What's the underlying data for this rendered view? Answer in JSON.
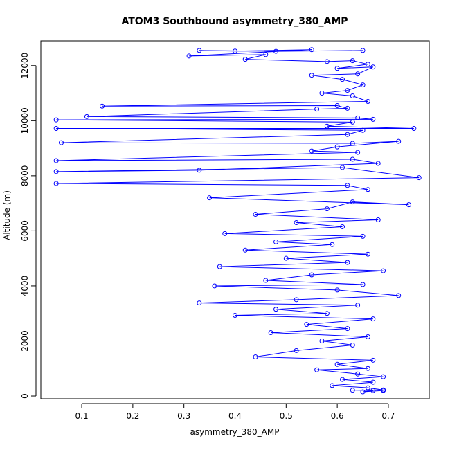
{
  "chart_data": {
    "type": "scatter",
    "title": "ATOM3 Southbound asymmetry_380_AMP",
    "xlabel": "asymmetry_380_AMP",
    "ylabel": "Altitude (m)",
    "xlim": [
      0.02,
      0.78
    ],
    "ylim": [
      -100,
      12900
    ],
    "xticks": [
      "0.1",
      "0.2",
      "0.3",
      "0.4",
      "0.5",
      "0.6",
      "0.7"
    ],
    "yticks": [
      "0",
      "2000",
      "4000",
      "6000",
      "8000",
      "10000",
      "12000"
    ],
    "series_color": "#0000ff",
    "grid": false,
    "legend": "none",
    "series": [
      {
        "points": [
          [
            0.65,
            12550
          ],
          [
            0.48,
            12520
          ],
          [
            0.33,
            12550
          ],
          [
            0.4,
            12530
          ],
          [
            0.55,
            12580
          ],
          [
            0.31,
            12350
          ],
          [
            0.46,
            12400
          ],
          [
            0.42,
            12230
          ],
          [
            0.58,
            12150
          ],
          [
            0.63,
            12180
          ],
          [
            0.66,
            12050
          ],
          [
            0.6,
            11900
          ],
          [
            0.67,
            11950
          ],
          [
            0.64,
            11700
          ],
          [
            0.55,
            11650
          ],
          [
            0.61,
            11500
          ],
          [
            0.65,
            11300
          ],
          [
            0.62,
            11100
          ],
          [
            0.57,
            11000
          ],
          [
            0.63,
            10900
          ],
          [
            0.66,
            10700
          ],
          [
            0.14,
            10530
          ],
          [
            0.6,
            10550
          ],
          [
            0.62,
            10450
          ],
          [
            0.56,
            10420
          ],
          [
            0.11,
            10150
          ],
          [
            0.64,
            10100
          ],
          [
            0.67,
            10050
          ],
          [
            0.05,
            10030
          ],
          [
            0.63,
            9950
          ],
          [
            0.58,
            9800
          ],
          [
            0.75,
            9720
          ],
          [
            0.05,
            9720
          ],
          [
            0.65,
            9650
          ],
          [
            0.62,
            9500
          ],
          [
            0.06,
            9200
          ],
          [
            0.63,
            9180
          ],
          [
            0.72,
            9250
          ],
          [
            0.6,
            9050
          ],
          [
            0.55,
            8900
          ],
          [
            0.64,
            8850
          ],
          [
            0.05,
            8550
          ],
          [
            0.63,
            8600
          ],
          [
            0.68,
            8450
          ],
          [
            0.33,
            8200
          ],
          [
            0.05,
            8150
          ],
          [
            0.61,
            8300
          ],
          [
            0.76,
            7930
          ],
          [
            0.05,
            7720
          ],
          [
            0.62,
            7650
          ],
          [
            0.66,
            7500
          ],
          [
            0.35,
            7200
          ],
          [
            0.74,
            6950
          ],
          [
            0.63,
            7050
          ],
          [
            0.58,
            6800
          ],
          [
            0.44,
            6600
          ],
          [
            0.68,
            6400
          ],
          [
            0.52,
            6300
          ],
          [
            0.61,
            6150
          ],
          [
            0.38,
            5900
          ],
          [
            0.65,
            5800
          ],
          [
            0.48,
            5600
          ],
          [
            0.59,
            5500
          ],
          [
            0.42,
            5300
          ],
          [
            0.66,
            5150
          ],
          [
            0.5,
            5000
          ],
          [
            0.62,
            4850
          ],
          [
            0.37,
            4700
          ],
          [
            0.69,
            4550
          ],
          [
            0.55,
            4400
          ],
          [
            0.46,
            4200
          ],
          [
            0.65,
            4050
          ],
          [
            0.36,
            4000
          ],
          [
            0.6,
            3850
          ],
          [
            0.72,
            3650
          ],
          [
            0.52,
            3500
          ],
          [
            0.33,
            3380
          ],
          [
            0.64,
            3300
          ],
          [
            0.48,
            3150
          ],
          [
            0.58,
            3000
          ],
          [
            0.4,
            2930
          ],
          [
            0.67,
            2800
          ],
          [
            0.54,
            2600
          ],
          [
            0.62,
            2450
          ],
          [
            0.47,
            2300
          ],
          [
            0.66,
            2150
          ],
          [
            0.57,
            2000
          ],
          [
            0.63,
            1850
          ],
          [
            0.52,
            1650
          ],
          [
            0.44,
            1420
          ],
          [
            0.67,
            1300
          ],
          [
            0.6,
            1150
          ],
          [
            0.66,
            1000
          ],
          [
            0.56,
            950
          ],
          [
            0.64,
            800
          ],
          [
            0.69,
            700
          ],
          [
            0.61,
            600
          ],
          [
            0.67,
            500
          ],
          [
            0.59,
            380
          ],
          [
            0.66,
            300
          ],
          [
            0.69,
            220
          ],
          [
            0.63,
            210
          ],
          [
            0.67,
            200
          ],
          [
            0.65,
            150
          ],
          [
            0.69,
            200
          ]
        ]
      }
    ]
  }
}
